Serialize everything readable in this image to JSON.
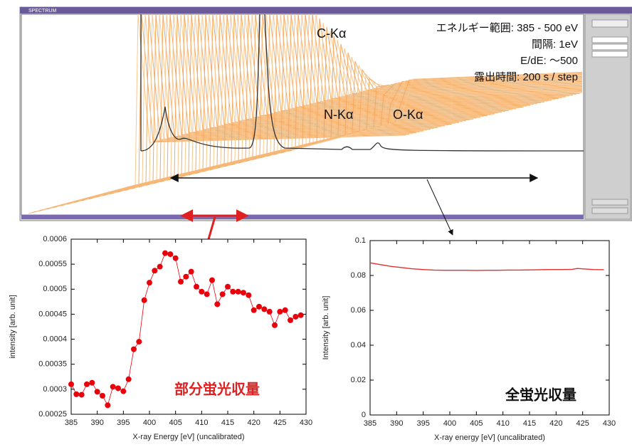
{
  "screen": {
    "title": "SPECTRUM",
    "peaks": [
      "C-Kα",
      "N-Kα",
      "O-Kα"
    ],
    "info": [
      "エネルギー範囲: 385 - 500 eV",
      "間隔: 1eV",
      "E/dE: ～500",
      "露出時間: 200 s / step"
    ]
  },
  "chart_data": [
    {
      "type": "line",
      "markers": true,
      "color": "#e8000b",
      "annotation": "部分蛍光収量",
      "x_label": "X-ray Energy [eV] (uncalibrated)",
      "y_label": "intensity [arb. unit]",
      "x": [
        385,
        386,
        387,
        388,
        389,
        390,
        391,
        392,
        393,
        394,
        395,
        396,
        397,
        398,
        399,
        400,
        401,
        402,
        403,
        404,
        405,
        406,
        407,
        408,
        409,
        410,
        411,
        412,
        413,
        414,
        415,
        416,
        417,
        418,
        419,
        420,
        421,
        422,
        423,
        424,
        425,
        426,
        427,
        428,
        429
      ],
      "values": [
        0.00031,
        0.00029,
        0.000289,
        0.00031,
        0.000313,
        0.000295,
        0.000287,
        0.000268,
        0.000305,
        0.000302,
        0.000296,
        0.00032,
        0.00038,
        0.000395,
        0.000478,
        0.000513,
        0.000537,
        0.000545,
        0.000572,
        0.00057,
        0.000562,
        0.000515,
        0.000525,
        0.000535,
        0.000505,
        0.000495,
        0.00049,
        0.000518,
        0.00047,
        0.00049,
        0.000505,
        0.000495,
        0.000495,
        0.000493,
        0.000488,
        0.000458,
        0.000465,
        0.00046,
        0.000455,
        0.000428,
        0.000455,
        0.000458,
        0.000438,
        0.000445,
        0.000448
      ],
      "xlim": [
        385,
        430
      ],
      "xticks": [
        385,
        390,
        395,
        400,
        405,
        410,
        415,
        420,
        425,
        430
      ],
      "ylim": [
        0.00025,
        0.0006
      ],
      "yticks": [
        0.00025,
        0.0003,
        0.00035,
        0.0004,
        0.00045,
        0.0005,
        0.00055,
        0.0006
      ]
    },
    {
      "type": "line",
      "markers": false,
      "color": "#e03030",
      "annotation": "全蛍光収量",
      "x_label": "X-ray energy [eV] (uncalibrated)",
      "y_label": "Intensity [arb. unit]",
      "x": [
        385,
        387,
        389,
        391,
        393,
        395,
        397,
        399,
        401,
        403,
        405,
        407,
        409,
        411,
        413,
        415,
        417,
        419,
        421,
        423,
        424,
        427,
        429
      ],
      "values": [
        0.0872,
        0.0862,
        0.0852,
        0.0845,
        0.0838,
        0.0834,
        0.0831,
        0.083,
        0.083,
        0.083,
        0.0829,
        0.083,
        0.083,
        0.0831,
        0.0831,
        0.0832,
        0.0833,
        0.0834,
        0.0834,
        0.0835,
        0.084,
        0.0834,
        0.0833
      ],
      "xlim": [
        385,
        430
      ],
      "xticks": [
        385,
        390,
        395,
        400,
        405,
        410,
        415,
        420,
        425,
        430
      ],
      "ylim": [
        0,
        0.1
      ],
      "yticks": [
        0,
        0.02,
        0.04,
        0.06,
        0.08,
        0.1
      ]
    }
  ]
}
